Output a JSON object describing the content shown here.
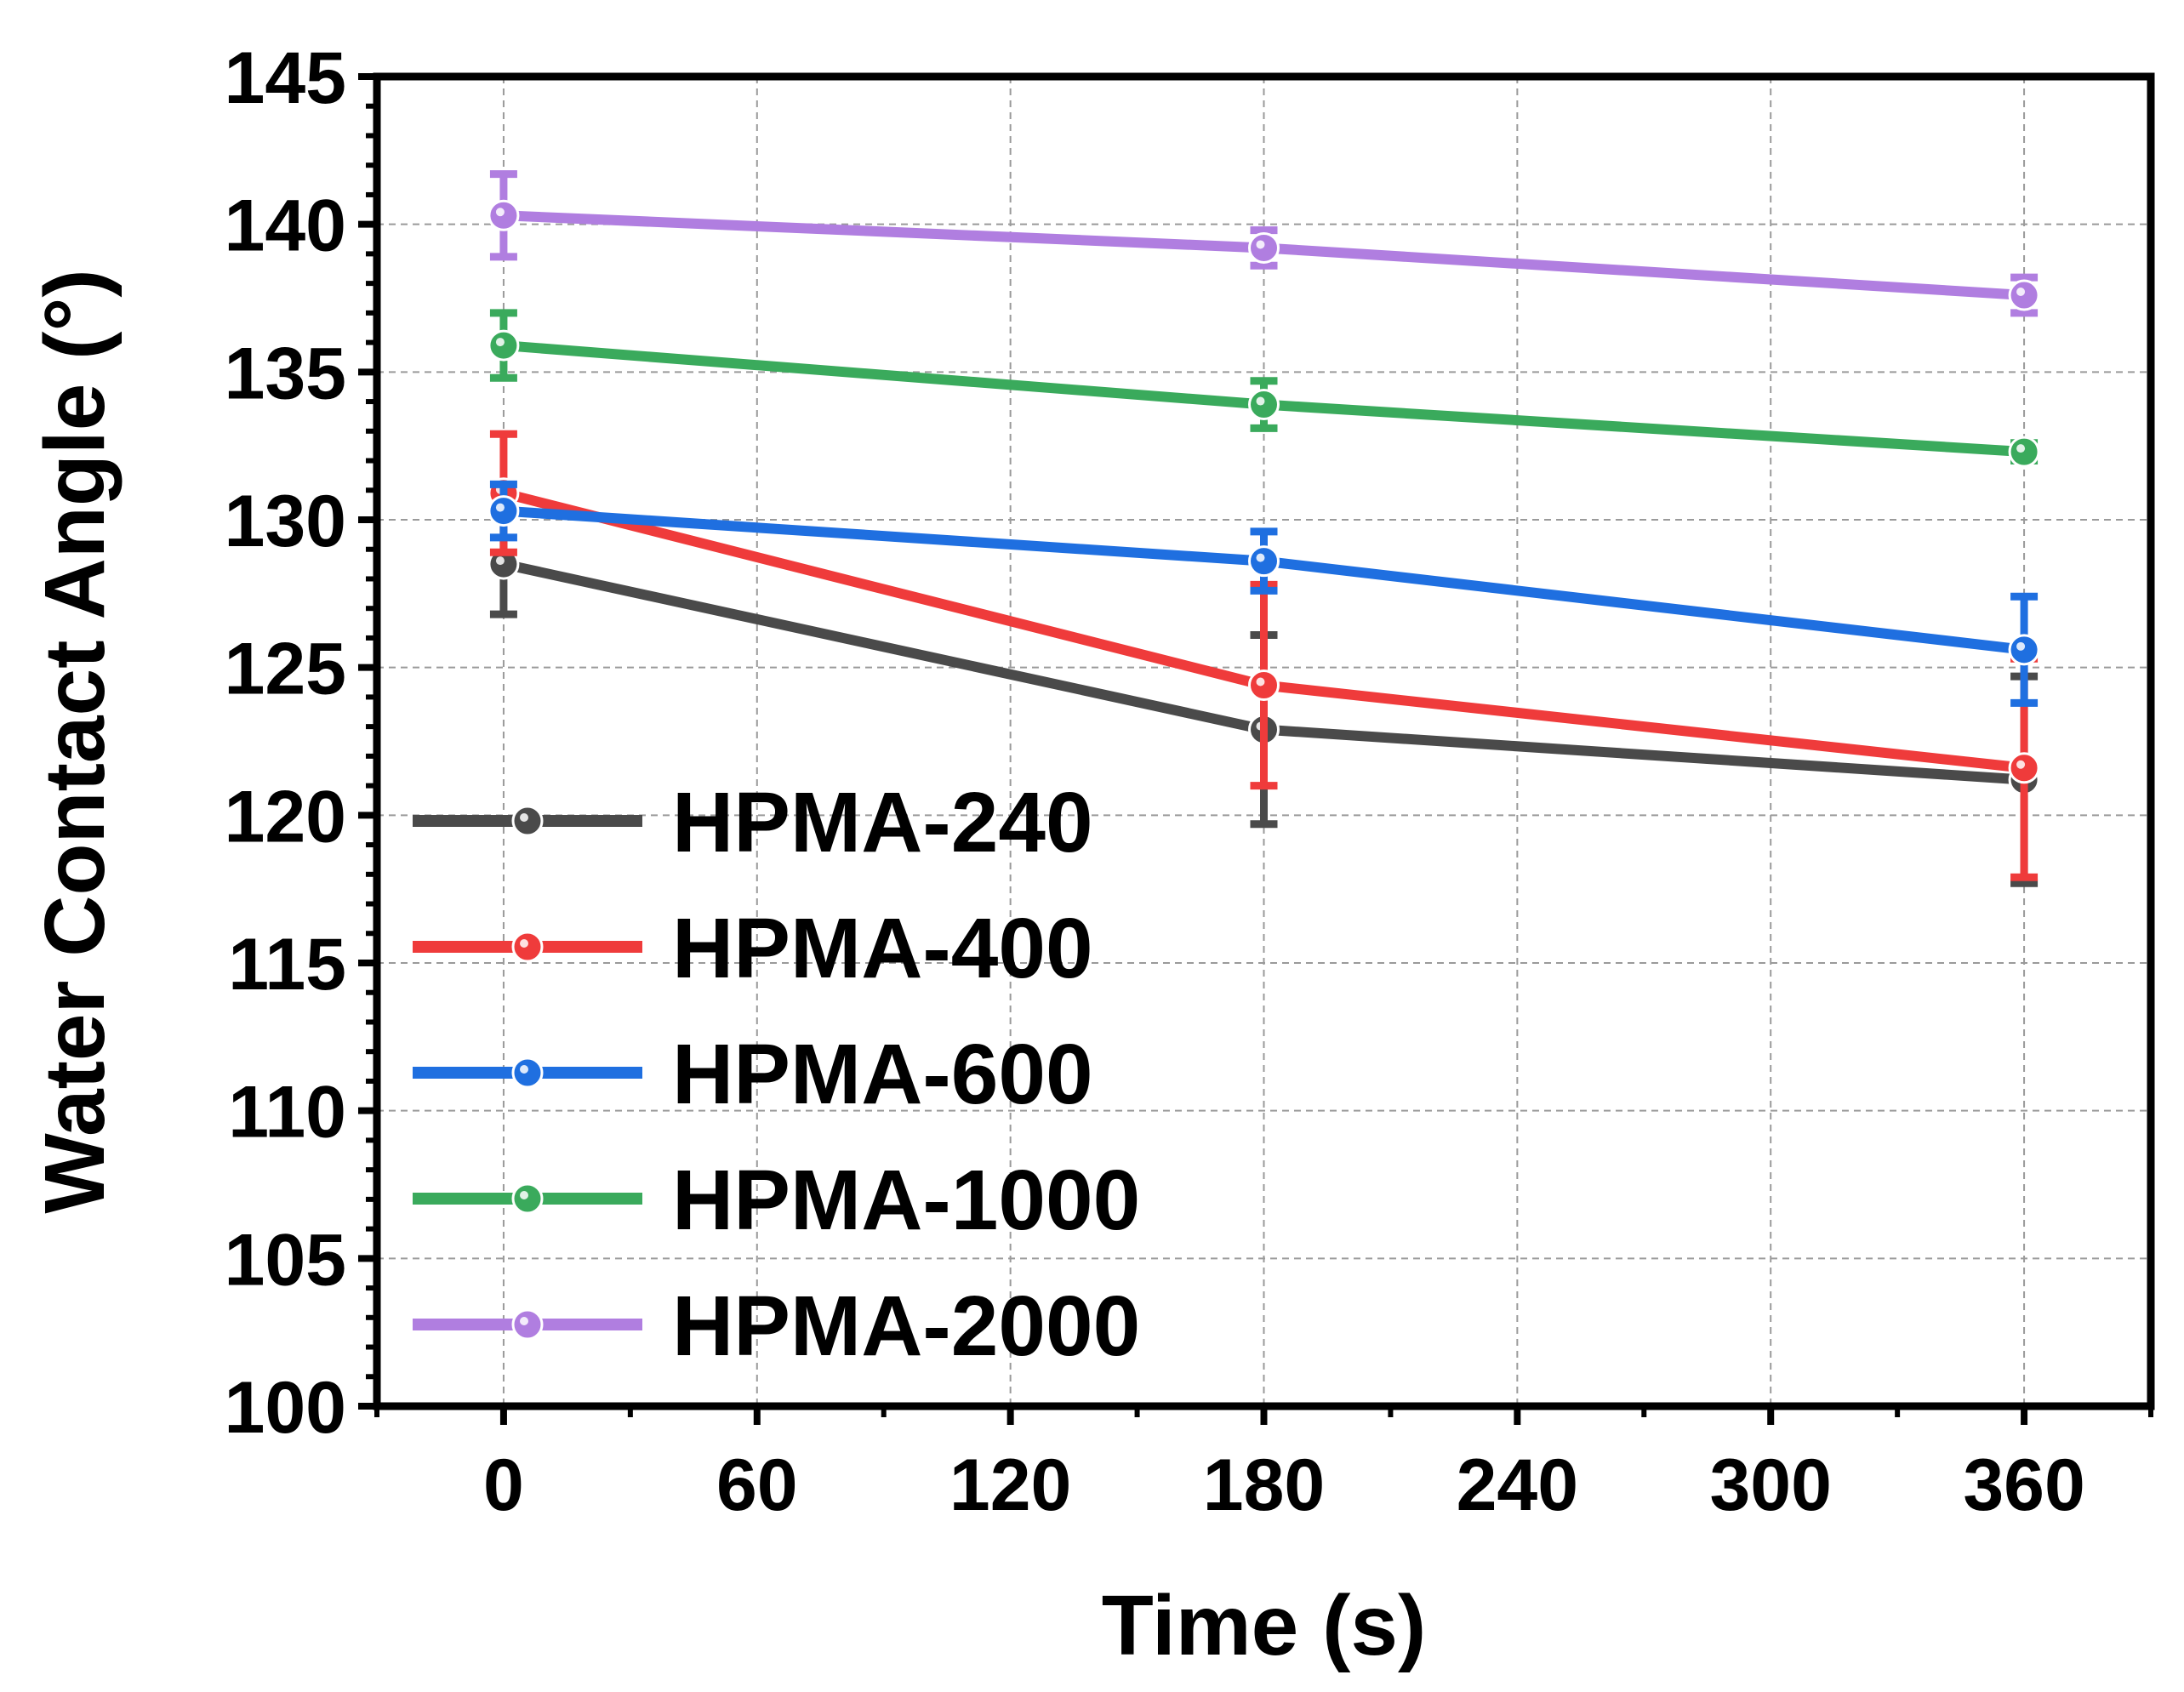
{
  "chart_data": {
    "type": "line",
    "xlabel": "Time (s)",
    "ylabel": "Water Contact Angle (°)",
    "xlim": [
      -30,
      390
    ],
    "ylim": [
      100,
      145
    ],
    "xticks": [
      0,
      60,
      120,
      180,
      240,
      300,
      360
    ],
    "yticks": [
      100,
      105,
      110,
      115,
      120,
      125,
      130,
      135,
      140,
      145
    ],
    "grid": true,
    "legend_position": "bottom-left",
    "series": [
      {
        "name": "HPMA-240",
        "color": "#4a4a4a",
        "x": [
          0,
          180,
          360
        ],
        "y": [
          128.5,
          122.9,
          121.2
        ],
        "err": [
          1.7,
          3.2,
          3.5
        ]
      },
      {
        "name": "HPMA-400",
        "color": "#ef3b3b",
        "x": [
          0,
          180,
          360
        ],
        "y": [
          130.9,
          124.4,
          121.6
        ],
        "err": [
          2.0,
          3.4,
          3.7
        ]
      },
      {
        "name": "HPMA-600",
        "color": "#1f6fe0",
        "x": [
          0,
          180,
          360
        ],
        "y": [
          130.3,
          128.6,
          125.6
        ],
        "err": [
          0.9,
          1.0,
          1.8
        ]
      },
      {
        "name": "HPMA-1000",
        "color": "#3aaa5c",
        "x": [
          0,
          180,
          360
        ],
        "y": [
          135.9,
          133.9,
          132.3
        ],
        "err": [
          1.1,
          0.8,
          0.3
        ]
      },
      {
        "name": "HPMA-2000",
        "color": "#b07ee0",
        "x": [
          0,
          180,
          360
        ],
        "y": [
          140.3,
          139.2,
          137.6
        ],
        "err": [
          1.4,
          0.6,
          0.6
        ]
      }
    ]
  }
}
